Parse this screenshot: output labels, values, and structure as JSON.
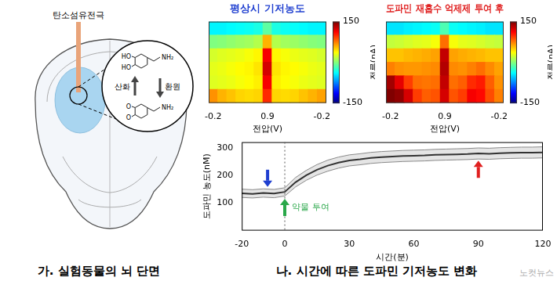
{
  "diagram": {
    "electrode_label": "탄소섬유전극",
    "oxidation_label": "산화",
    "reduction_label": "환원",
    "dopamine_labels": [
      "HO",
      "HO",
      "NH₂"
    ],
    "quinone_labels": [
      "O",
      "O",
      "NH₂"
    ],
    "caption": "가. 실험동물의 뇌 단면"
  },
  "caption": "나. 시간에 따른 도파민 기저농도 변화",
  "watermark": "노컷뉴스",
  "chart_data": [
    {
      "type": "heatmap",
      "title": "평상시 기저농도",
      "color": "#1f3fd0",
      "xlabel": "전압(V)",
      "categories": [
        "-0.2",
        null,
        null,
        null,
        null,
        null,
        "0.9",
        null,
        null,
        null,
        null,
        null,
        "-0.2"
      ],
      "cells": [
        [
          -40,
          -40,
          -38,
          -36,
          -34,
          -30,
          -10,
          -30,
          -34,
          -36,
          -38,
          -40,
          -40
        ],
        [
          0,
          2,
          5,
          8,
          10,
          15,
          60,
          15,
          10,
          8,
          5,
          2,
          0
        ],
        [
          25,
          28,
          30,
          32,
          35,
          40,
          115,
          40,
          35,
          32,
          30,
          28,
          25
        ],
        [
          30,
          32,
          35,
          38,
          40,
          45,
          125,
          45,
          40,
          38,
          35,
          32,
          30
        ],
        [
          28,
          30,
          32,
          35,
          38,
          42,
          115,
          42,
          38,
          35,
          32,
          30,
          28
        ],
        [
          70,
          60,
          55,
          50,
          48,
          50,
          100,
          50,
          48,
          50,
          55,
          60,
          65
        ]
      ],
      "zlim": [
        -150,
        150
      ],
      "zticks": [
        150,
        -150
      ],
      "colorbar_label": "전류(nA)",
      "tick_labels": "x"
    },
    {
      "type": "heatmap",
      "title": "도파민 재흡수 억제제 투여 후",
      "color": "#e02020",
      "xlabel": "전압(V)",
      "categories": [
        "-0.2",
        null,
        null,
        null,
        null,
        null,
        "0.9",
        null,
        null,
        null,
        null,
        null,
        "-0.2"
      ],
      "cells": [
        [
          -45,
          -45,
          -42,
          -40,
          -38,
          -35,
          -15,
          -35,
          -38,
          -40,
          -42,
          -45,
          -45
        ],
        [
          20,
          22,
          25,
          28,
          30,
          35,
          80,
          35,
          30,
          28,
          25,
          22,
          20
        ],
        [
          55,
          55,
          58,
          60,
          62,
          65,
          130,
          65,
          62,
          60,
          58,
          55,
          55
        ],
        [
          75,
          70,
          68,
          68,
          70,
          72,
          135,
          72,
          70,
          75,
          80,
          72,
          65
        ],
        [
          140,
          120,
          95,
          80,
          78,
          80,
          130,
          80,
          85,
          100,
          105,
          85,
          70
        ],
        [
          150,
          145,
          125,
          95,
          85,
          88,
          125,
          88,
          95,
          115,
          110,
          90,
          75
        ]
      ],
      "zlim": [
        -150,
        150
      ],
      "zticks": [
        150,
        -150
      ],
      "colorbar_label": "전류(nA)",
      "tick_labels": "x"
    },
    {
      "type": "line",
      "xlabel": "시간(분)",
      "ylabel": "도파민 농도(nM)",
      "color": "#111111",
      "grid": false,
      "x": [
        -20,
        -15,
        -10,
        -5,
        0,
        5,
        10,
        15,
        20,
        25,
        30,
        35,
        40,
        45,
        50,
        55,
        60,
        65,
        70,
        75,
        80,
        85,
        90,
        95,
        100,
        105,
        110,
        115,
        120
      ],
      "values": [
        135,
        133,
        136,
        134,
        140,
        175,
        200,
        220,
        235,
        246,
        254,
        258,
        263,
        266,
        268,
        270,
        271,
        272,
        274,
        275,
        276,
        277,
        279,
        278,
        280,
        281,
        282,
        282,
        283
      ],
      "error": [
        15,
        15,
        15,
        15,
        15,
        17,
        18,
        19,
        20,
        20,
        20,
        20,
        20,
        20,
        20,
        20,
        20,
        20,
        20,
        20,
        20,
        20,
        20,
        20,
        20,
        20,
        20,
        20,
        20
      ],
      "xlim": [
        -20,
        120
      ],
      "xticks": [
        -20,
        0,
        30,
        60,
        90,
        120
      ],
      "ylim": [
        0,
        320
      ],
      "yticks": [
        100,
        200,
        300
      ],
      "vlines": [
        0
      ],
      "arrows": [
        {
          "x": -8,
          "y": 158,
          "color": "#1f3fd0"
        },
        {
          "x": 90,
          "y": 253,
          "color": "#e02020"
        }
      ],
      "annotations": [
        {
          "text": "약물 투여",
          "x": 0,
          "y": 115,
          "color": "#2aa84a"
        }
      ]
    }
  ]
}
